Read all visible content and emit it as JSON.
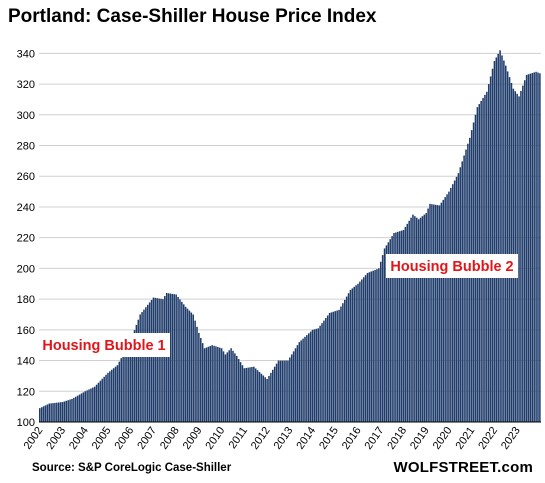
{
  "title": "Portland: Case-Shiller House Price Index",
  "source": "Source: S&P CoreLogic Case-Shiller",
  "brand": "WOLFSTREET.com",
  "chart_data": {
    "type": "bar",
    "title": "Portland: Case-Shiller House Price Index",
    "xlabel": "",
    "ylabel": "",
    "ylim": [
      100,
      350
    ],
    "yticks": [
      100,
      120,
      140,
      160,
      180,
      200,
      220,
      240,
      260,
      280,
      300,
      320,
      340
    ],
    "xticks": [
      "2002",
      "2003",
      "2004",
      "2005",
      "2006",
      "2007",
      "2008",
      "2009",
      "2010",
      "2011",
      "2012",
      "2013",
      "2014",
      "2015",
      "2016",
      "2017",
      "2018",
      "2019",
      "2020",
      "2021",
      "2022",
      "2023"
    ],
    "grid": "horizontal",
    "bar_color": "#1f3c6b",
    "start": "2002-01",
    "frequency": "monthly",
    "keyframes": [
      [
        "2002-01",
        109
      ],
      [
        "2002-06",
        112
      ],
      [
        "2003-01",
        113
      ],
      [
        "2003-06",
        115
      ],
      [
        "2004-01",
        120
      ],
      [
        "2004-06",
        123
      ],
      [
        "2005-01",
        132
      ],
      [
        "2005-06",
        137
      ],
      [
        "2006-01",
        153
      ],
      [
        "2006-06",
        170
      ],
      [
        "2007-01",
        181
      ],
      [
        "2007-06",
        180
      ],
      [
        "2007-08",
        184
      ],
      [
        "2008-01",
        183
      ],
      [
        "2008-06",
        175
      ],
      [
        "2008-10",
        170
      ],
      [
        "2009-01",
        158
      ],
      [
        "2009-04",
        148
      ],
      [
        "2009-08",
        150
      ],
      [
        "2010-01",
        148
      ],
      [
        "2010-03",
        144
      ],
      [
        "2010-06",
        148
      ],
      [
        "2010-09",
        143
      ],
      [
        "2011-01",
        135
      ],
      [
        "2011-06",
        136
      ],
      [
        "2012-01",
        128
      ],
      [
        "2012-03",
        132
      ],
      [
        "2012-07",
        140
      ],
      [
        "2012-12",
        140
      ],
      [
        "2013-06",
        152
      ],
      [
        "2014-01",
        160
      ],
      [
        "2014-04",
        161
      ],
      [
        "2014-10",
        171
      ],
      [
        "2015-03",
        173
      ],
      [
        "2015-09",
        186
      ],
      [
        "2016-01",
        190
      ],
      [
        "2016-06",
        197
      ],
      [
        "2016-12",
        200
      ],
      [
        "2017-03",
        213
      ],
      [
        "2017-08",
        223
      ],
      [
        "2018-01",
        225
      ],
      [
        "2018-06",
        235
      ],
      [
        "2018-09",
        232
      ],
      [
        "2019-01",
        236
      ],
      [
        "2019-03",
        242
      ],
      [
        "2019-08",
        241
      ],
      [
        "2020-01",
        250
      ],
      [
        "2020-06",
        262
      ],
      [
        "2020-12",
        285
      ],
      [
        "2021-04",
        305
      ],
      [
        "2021-09",
        315
      ],
      [
        "2022-01",
        335
      ],
      [
        "2022-04",
        342
      ],
      [
        "2022-07",
        332
      ],
      [
        "2022-11",
        317
      ],
      [
        "2023-02",
        312
      ],
      [
        "2023-06",
        326
      ],
      [
        "2023-11",
        328
      ],
      [
        "2024-01",
        327
      ]
    ],
    "annotations": [
      {
        "text": "Housing Bubble 1",
        "at": "2006"
      },
      {
        "text": "Housing Bubble 2",
        "at": "2022"
      }
    ]
  }
}
